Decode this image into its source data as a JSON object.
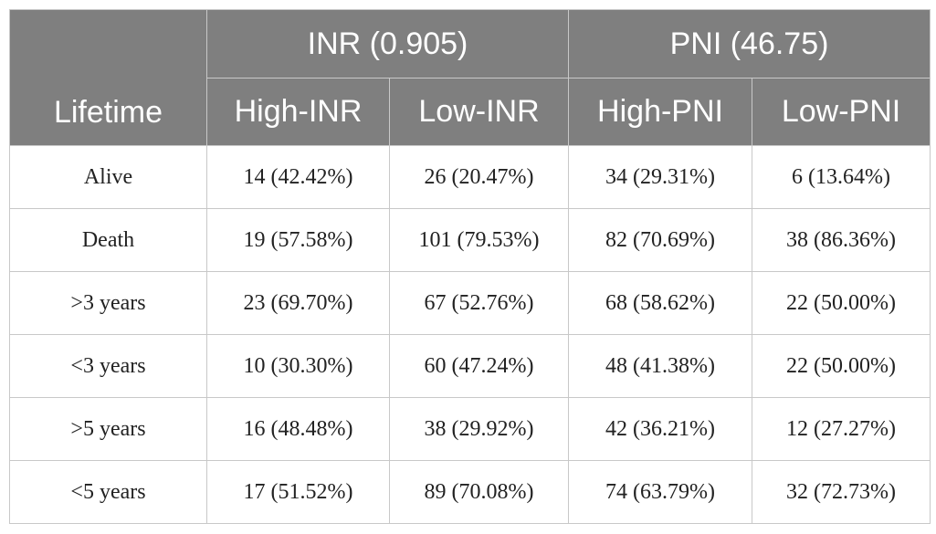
{
  "table": {
    "row_header_label": "Lifetime",
    "groups": [
      {
        "label": "INR (0.905)",
        "subs": [
          "High-INR",
          "Low-INR"
        ]
      },
      {
        "label": "PNI (46.75)",
        "subs": [
          "High-PNI",
          "Low-PNI"
        ]
      }
    ],
    "rows": [
      {
        "label": "Alive",
        "cells": [
          "14 (42.42%)",
          "26 (20.47%)",
          "34 (29.31%)",
          "6 (13.64%)"
        ]
      },
      {
        "label": "Death",
        "cells": [
          "19 (57.58%)",
          "101 (79.53%)",
          "82 (70.69%)",
          "38 (86.36%)"
        ]
      },
      {
        "label": ">3 years",
        "cells": [
          "23 (69.70%)",
          "67 (52.76%)",
          "68 (58.62%)",
          "22 (50.00%)"
        ]
      },
      {
        "label": "<3 years",
        "cells": [
          "10 (30.30%)",
          "60 (47.24%)",
          "48 (41.38%)",
          "22 (50.00%)"
        ]
      },
      {
        "label": ">5 years",
        "cells": [
          "16 (48.48%)",
          "38 (29.92%)",
          "42 (36.21%)",
          "12 (27.27%)"
        ]
      },
      {
        "label": "<5 years",
        "cells": [
          "17 (51.52%)",
          "89 (70.08%)",
          "74 (63.79%)",
          "32 (72.73%)"
        ]
      }
    ]
  }
}
